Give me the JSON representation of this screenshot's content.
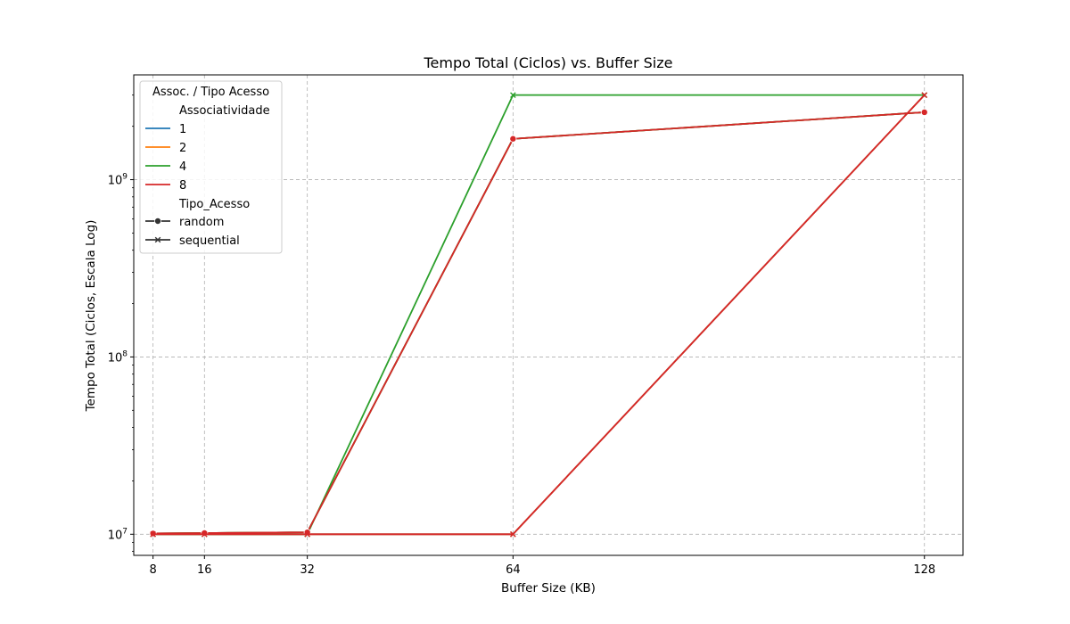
{
  "chart_data": {
    "type": "line",
    "title": "Tempo Total (Ciclos) vs. Buffer Size",
    "xlabel": "Buffer Size (KB)",
    "ylabel": "Tempo Total (Ciclos, Escala Log)",
    "x": [
      8,
      16,
      32,
      64,
      128
    ],
    "x_ticks": [
      8,
      16,
      32,
      64,
      128
    ],
    "xlim": [
      5,
      134
    ],
    "yscale": "log",
    "ylim": [
      7600000,
      3900000000
    ],
    "y_ticks": [
      {
        "value": 10000000,
        "base": "10",
        "exp": "7"
      },
      {
        "value": 100000000,
        "base": "10",
        "exp": "8"
      },
      {
        "value": 1000000000,
        "base": "10",
        "exp": "9"
      }
    ],
    "grid": true,
    "legend": {
      "title": "Assoc. / Tipo Acesso",
      "placement": "top-left",
      "hue_title": "Associatividade",
      "hue_entries": [
        {
          "label": "1",
          "color": "#1f77b4"
        },
        {
          "label": "2",
          "color": "#ff7f0e"
        },
        {
          "label": "4",
          "color": "#2ca02c"
        },
        {
          "label": "8",
          "color": "#d62728"
        }
      ],
      "style_title": "Tipo_Acesso",
      "style_entries": [
        {
          "label": "random",
          "marker": "circle"
        },
        {
          "label": "sequential",
          "marker": "x"
        }
      ]
    },
    "series": [
      {
        "assoc": "1",
        "access": "random",
        "color": "#1f77b4",
        "marker": "circle",
        "values": [
          10100000,
          10150000,
          10250000,
          1700000000,
          2400000000
        ]
      },
      {
        "assoc": "1",
        "access": "sequential",
        "color": "#1f77b4",
        "marker": "x",
        "values": [
          10000000,
          10000000,
          10000000,
          10000000,
          3000000000
        ]
      },
      {
        "assoc": "2",
        "access": "random",
        "color": "#ff7f0e",
        "marker": "circle",
        "values": [
          10100000,
          10150000,
          10250000,
          1700000000,
          2400000000
        ]
      },
      {
        "assoc": "2",
        "access": "sequential",
        "color": "#ff7f0e",
        "marker": "x",
        "values": [
          10000000,
          10000000,
          10000000,
          10000000,
          3000000000
        ]
      },
      {
        "assoc": "4",
        "access": "random",
        "color": "#2ca02c",
        "marker": "circle",
        "values": [
          10100000,
          10150000,
          10250000,
          1700000000,
          2400000000
        ]
      },
      {
        "assoc": "4",
        "access": "sequential",
        "color": "#2ca02c",
        "marker": "x",
        "values": [
          10000000,
          10000000,
          10000000,
          3000000000,
          3000000000
        ]
      },
      {
        "assoc": "8",
        "access": "random",
        "color": "#d62728",
        "marker": "circle",
        "values": [
          10100000,
          10150000,
          10250000,
          1700000000,
          2400000000
        ]
      },
      {
        "assoc": "8",
        "access": "sequential",
        "color": "#d62728",
        "marker": "x",
        "values": [
          10000000,
          10000000,
          10000000,
          10000000,
          3000000000
        ]
      }
    ]
  }
}
